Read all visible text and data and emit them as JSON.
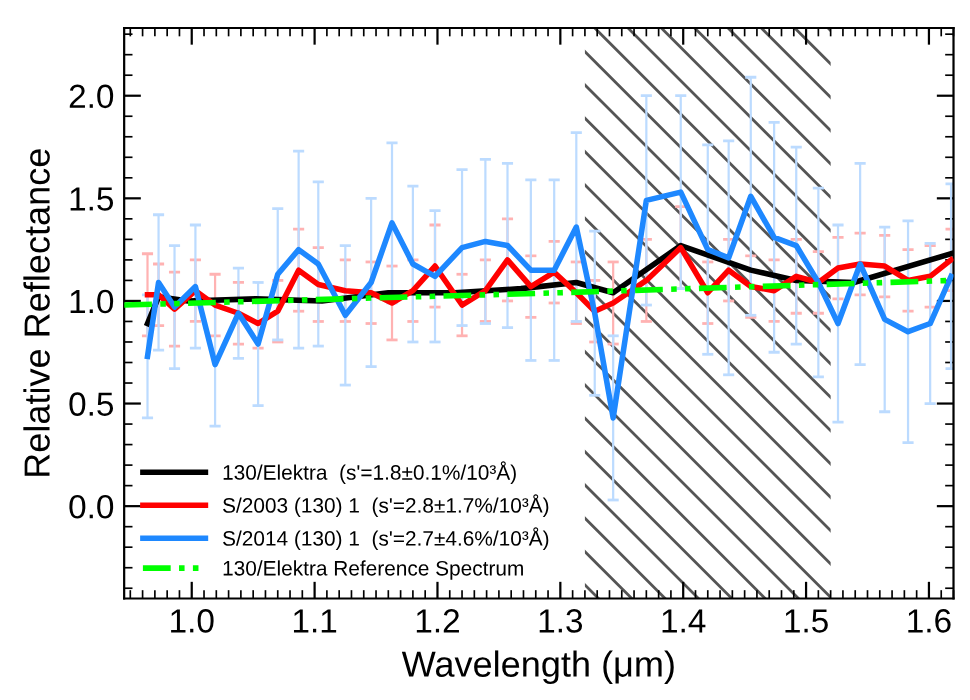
{
  "chart_data": {
    "type": "line",
    "xlabel": "Wavelength (μm)",
    "ylabel": "Relative Reflectance",
    "xlim": [
      0.945,
      1.62
    ],
    "ylim": [
      -0.45,
      2.33
    ],
    "xticks": [
      {
        "value": 1.0,
        "label": "1.0"
      },
      {
        "value": 1.1,
        "label": "1.1"
      },
      {
        "value": 1.2,
        "label": "1.2"
      },
      {
        "value": 1.3,
        "label": "1.3"
      },
      {
        "value": 1.4,
        "label": "1.4"
      },
      {
        "value": 1.5,
        "label": "1.5"
      },
      {
        "value": 1.6,
        "label": "1.6"
      }
    ],
    "yticks": [
      {
        "value": 0.0,
        "label": "0.0"
      },
      {
        "value": 0.5,
        "label": "0.5"
      },
      {
        "value": 1.0,
        "label": "1.0"
      },
      {
        "value": 1.5,
        "label": "1.5"
      },
      {
        "value": 2.0,
        "label": "2.0"
      }
    ],
    "grid": false,
    "legend": "bottom left",
    "marker": "none",
    "bands": [
      {
        "axis": "x",
        "from": 1.32,
        "to": 1.52,
        "color": "#555555"
      }
    ],
    "series": [
      {
        "name": "130/Elektra  (s'=1.8±0.1%/10³Å)",
        "color": "#000000",
        "line_style": "solid",
        "x": [
          0.964,
          0.973,
          0.997,
          1.052,
          1.106,
          1.16,
          1.214,
          1.268,
          1.313,
          1.343,
          1.398,
          1.455,
          1.492,
          1.539,
          1.618
        ],
        "values": [
          0.89,
          1.02,
          1.0,
          1.01,
          1.0,
          1.04,
          1.04,
          1.06,
          1.09,
          1.04,
          1.27,
          1.15,
          1.1,
          1.09,
          1.23
        ]
      },
      {
        "name": "S/2003 (130) 1  (s'=2.8±1.7%/10³Å)",
        "color": "#ff0000",
        "line_style": "solid",
        "x": [
          0.964,
          0.973,
          0.986,
          1.003,
          1.019,
          1.038,
          1.054,
          1.07,
          1.087,
          1.103,
          1.125,
          1.146,
          1.163,
          1.18,
          1.198,
          1.22,
          1.239,
          1.257,
          1.276,
          1.295,
          1.313,
          1.328,
          1.343,
          1.37,
          1.398,
          1.42,
          1.437,
          1.455,
          1.474,
          1.492,
          1.51,
          1.526,
          1.544,
          1.564,
          1.583,
          1.601,
          1.618
        ],
        "values": [
          1.03,
          1.03,
          0.96,
          1.05,
          0.98,
          0.94,
          0.89,
          0.95,
          1.15,
          1.08,
          1.05,
          1.04,
          0.99,
          1.05,
          1.17,
          0.98,
          1.05,
          1.2,
          1.07,
          1.14,
          1.04,
          0.95,
          0.99,
          1.1,
          1.26,
          1.04,
          1.15,
          1.07,
          1.05,
          1.12,
          1.09,
          1.16,
          1.18,
          1.17,
          1.1,
          1.12,
          1.2
        ],
        "errors": [
          0.2,
          0.15,
          0.18,
          0.15,
          0.15,
          0.15,
          0.12,
          0.15,
          0.2,
          0.18,
          0.15,
          0.15,
          0.18,
          0.15,
          0.2,
          0.15,
          0.15,
          0.2,
          0.15,
          0.15,
          0.15,
          0.15,
          0.2,
          0.2,
          0.2,
          0.15,
          0.15,
          0.15,
          0.15,
          0.18,
          0.15,
          0.15,
          0.15,
          0.15,
          0.15,
          0.15,
          0.15
        ]
      },
      {
        "name": "S/2014 (130) 1  (s'=2.7±4.6%/10³Å)",
        "color": "#1e88ff",
        "line_style": "solid",
        "x": [
          0.964,
          0.973,
          0.986,
          1.003,
          1.019,
          1.038,
          1.054,
          1.07,
          1.087,
          1.103,
          1.125,
          1.146,
          1.163,
          1.18,
          1.198,
          1.22,
          1.239,
          1.257,
          1.276,
          1.295,
          1.313,
          1.328,
          1.343,
          1.37,
          1.398,
          1.42,
          1.437,
          1.455,
          1.474,
          1.492,
          1.51,
          1.526,
          1.544,
          1.564,
          1.583,
          1.601,
          1.618
        ],
        "values": [
          0.73,
          1.09,
          0.97,
          1.07,
          0.69,
          0.94,
          0.79,
          1.13,
          1.25,
          1.18,
          0.93,
          1.09,
          1.38,
          1.18,
          1.12,
          1.26,
          1.29,
          1.27,
          1.15,
          1.15,
          1.36,
          0.94,
          0.43,
          1.49,
          1.53,
          1.25,
          1.21,
          1.51,
          1.31,
          1.27,
          1.09,
          0.89,
          1.18,
          0.91,
          0.85,
          0.89,
          1.12
        ],
        "errors": [
          0.3,
          0.33,
          0.3,
          0.3,
          0.3,
          0.22,
          0.3,
          0.32,
          0.48,
          0.4,
          0.34,
          0.41,
          0.39,
          0.38,
          0.32,
          0.38,
          0.4,
          0.4,
          0.44,
          0.44,
          0.46,
          0.4,
          0.4,
          0.51,
          0.47,
          0.51,
          0.57,
          0.58,
          0.56,
          0.48,
          0.46,
          0.48,
          0.49,
          0.45,
          0.54,
          0.39,
          0.45
        ]
      },
      {
        "name": "130/Elektra Reference Spectrum",
        "color": "#00ff00",
        "line_style": "dashed",
        "x": [
          0.945,
          1.3,
          1.62
        ],
        "values": [
          0.98,
          1.04,
          1.1
        ]
      }
    ]
  }
}
